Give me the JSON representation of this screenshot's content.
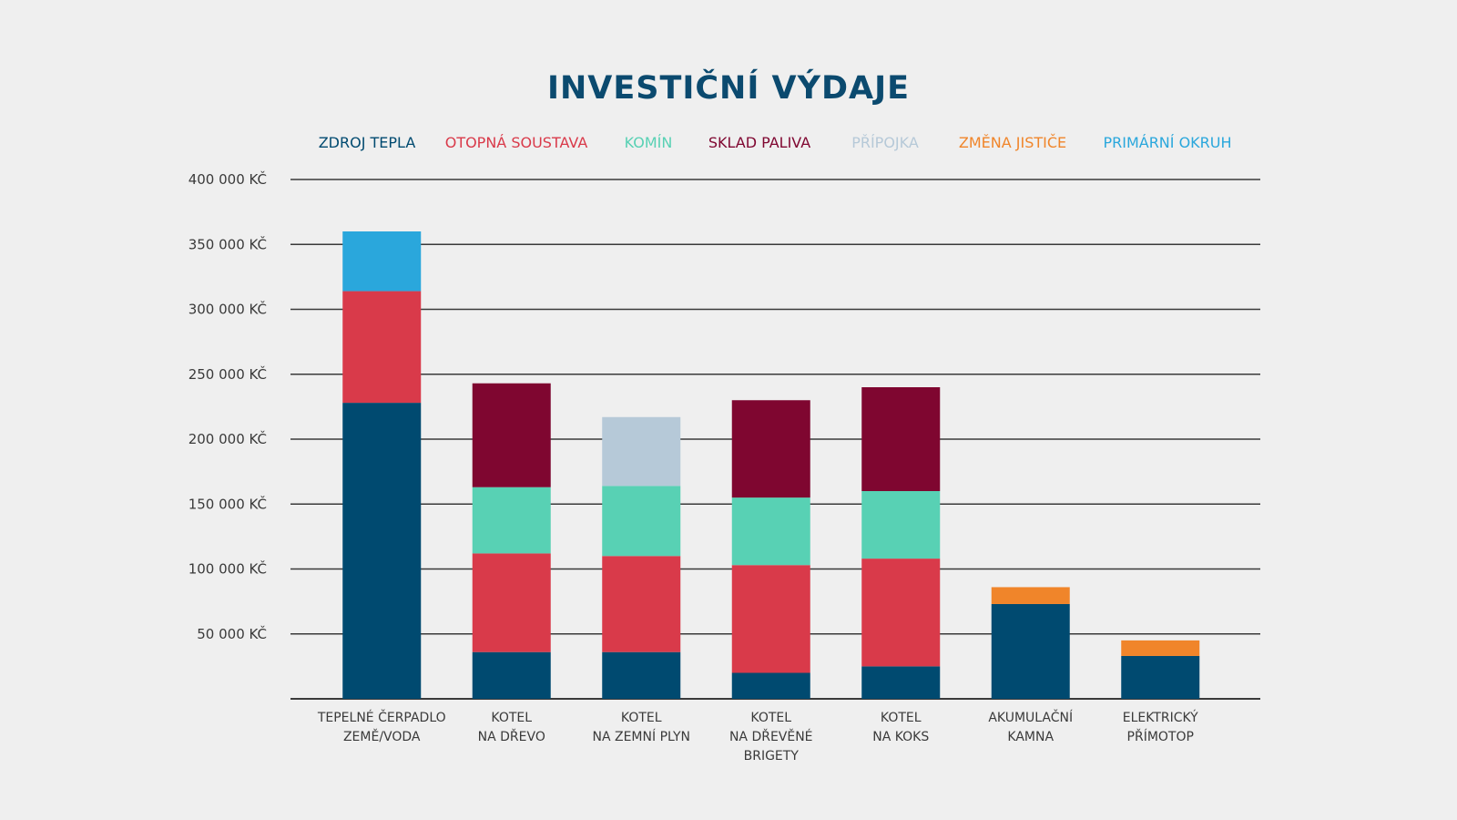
{
  "chart_data": {
    "type": "bar",
    "stacked": true,
    "title": "INVESTIČNÍ VÝDAJE",
    "title_color": "#0b4a6f",
    "ylim": [
      0,
      400000
    ],
    "y_tick_values": [
      50000,
      100000,
      150000,
      200000,
      250000,
      300000,
      350000,
      400000
    ],
    "y_tick_labels": [
      "50 000 KČ",
      "100 000 KČ",
      "150 000 KČ",
      "200 000 KČ",
      "250 000 KČ",
      "300 000 KČ",
      "350 000 KČ",
      "400 000 KČ"
    ],
    "grid": true,
    "legend_position": "top",
    "categories": [
      [
        "TEPELNÉ ČERPADLO",
        "ZEMĚ/VODA"
      ],
      [
        "KOTEL",
        "NA DŘEVO"
      ],
      [
        "KOTEL",
        "NA ZEMNÍ PLYN"
      ],
      [
        "KOTEL",
        "NA DŘEVĚNÉ",
        "BRIGETY"
      ],
      [
        "KOTEL",
        "NA KOKS"
      ],
      [
        "AKUMULAČNÍ",
        "KAMNA"
      ],
      [
        "ELEKTRICKÝ",
        "PŘÍMOTOP"
      ]
    ],
    "series": [
      {
        "name": "ZDROJ TEPLA",
        "color": "#004a70",
        "values": [
          228000,
          36000,
          36000,
          20000,
          25000,
          73000,
          33000
        ]
      },
      {
        "name": "OTOPNÁ SOUSTAVA",
        "color": "#d93a4a",
        "values": [
          86000,
          76000,
          74000,
          83000,
          83000,
          0,
          0
        ]
      },
      {
        "name": "KOMÍN",
        "color": "#58d1b4",
        "values": [
          0,
          51000,
          54000,
          52000,
          52000,
          0,
          0
        ]
      },
      {
        "name": "SKLAD PALIVA",
        "color": "#7f0630",
        "values": [
          0,
          80000,
          0,
          75000,
          80000,
          0,
          0
        ]
      },
      {
        "name": "PŘÍPOJKA",
        "color": "#b6c9d8",
        "values": [
          0,
          0,
          53000,
          0,
          0,
          0,
          0
        ]
      },
      {
        "name": "ZMĚNA JISTIČE",
        "color": "#f0852a",
        "values": [
          0,
          0,
          0,
          0,
          0,
          13000,
          12000
        ]
      },
      {
        "name": "PRIMÁRNÍ OKRUH",
        "color": "#2aa7dc",
        "values": [
          46000,
          0,
          0,
          0,
          0,
          0,
          0
        ]
      }
    ],
    "text_color": "#3a3a3a",
    "grid_color": "#3a3a3a"
  }
}
